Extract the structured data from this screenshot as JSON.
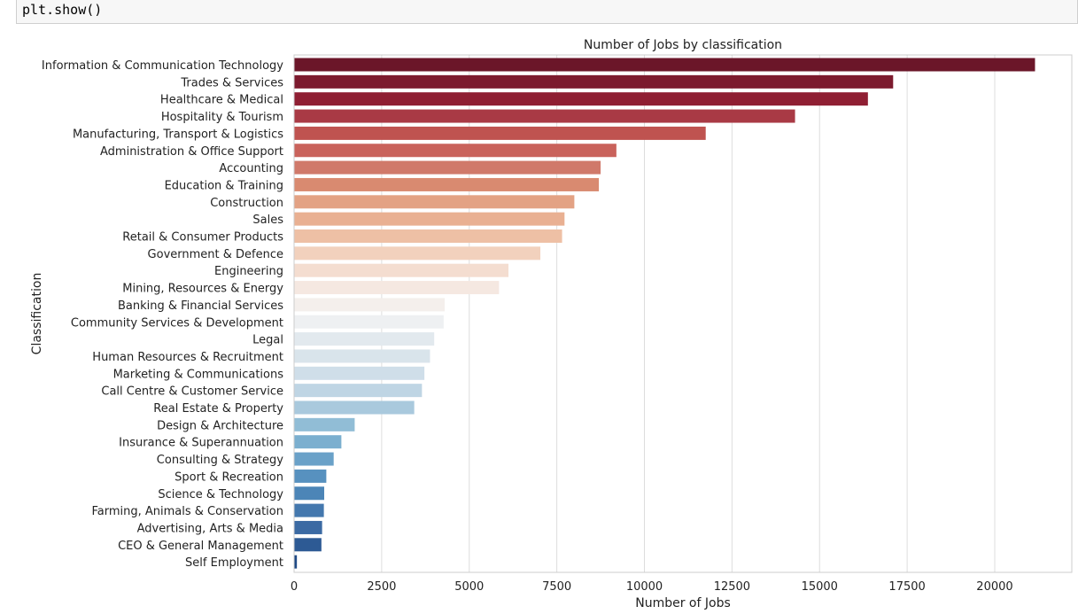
{
  "code": {
    "text": "plt.show()"
  },
  "chart_data": {
    "type": "bar",
    "orientation": "horizontal",
    "title": "Number of Jobs by classification",
    "xlabel": "Number of Jobs",
    "ylabel": "Classification",
    "xlim": [
      0,
      22200
    ],
    "xticks": [
      0,
      2500,
      5000,
      7500,
      10000,
      12500,
      15000,
      17500,
      20000
    ],
    "grid": true,
    "categories": [
      "Information & Communication Technology",
      "Trades & Services",
      "Healthcare & Medical",
      "Hospitality & Tourism",
      "Manufacturing, Transport & Logistics",
      "Administration & Office Support",
      "Accounting",
      "Education & Training",
      "Construction",
      "Sales",
      "Retail & Consumer Products",
      "Government & Defence",
      "Engineering",
      "Mining, Resources & Energy",
      "Banking & Financial Services",
      "Community Services & Development",
      "Legal",
      "Human Resources & Recruitment",
      "Marketing & Communications",
      "Call Centre & Customer Service",
      "Real Estate & Property",
      "Design & Architecture",
      "Insurance & Superannuation",
      "Consulting & Strategy",
      "Sport & Recreation",
      "Science & Technology",
      "Farming, Animals & Conservation",
      "Advertising, Arts & Media",
      "CEO & General Management",
      "Self Employment"
    ],
    "values": [
      21150,
      17100,
      16380,
      14300,
      11750,
      9200,
      8750,
      8700,
      8000,
      7720,
      7650,
      7030,
      6120,
      5850,
      4300,
      4270,
      4000,
      3880,
      3720,
      3650,
      3430,
      1730,
      1350,
      1130,
      920,
      860,
      850,
      800,
      780,
      80
    ],
    "colors": [
      "#6b1629",
      "#7c1a2e",
      "#8f1f33",
      "#a93a45",
      "#bf5350",
      "#c9625b",
      "#d0796a",
      "#d98a70",
      "#e3a284",
      "#e9b092",
      "#eec0a5",
      "#f2d1bd",
      "#f4ddd0",
      "#f5e8e1",
      "#f4efec",
      "#eef0f2",
      "#e2e9ee",
      "#d9e4eb",
      "#cfdee9",
      "#bfd5e4",
      "#a9c9dd",
      "#91bdd6",
      "#7bafcf",
      "#6aa1c8",
      "#5791bf",
      "#4c85b7",
      "#4478ae",
      "#3b6aa3",
      "#2d5a94",
      "#1f4a85"
    ]
  }
}
